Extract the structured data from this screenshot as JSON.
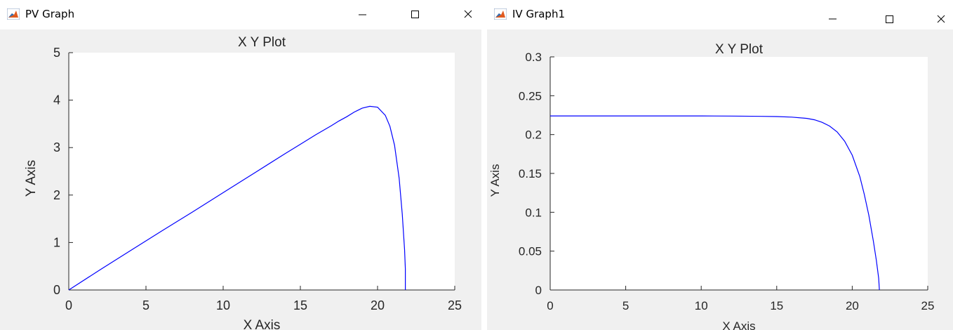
{
  "windows": [
    {
      "title": "PV Graph",
      "icon": "matlab-icon",
      "chart": {
        "title": "X Y Plot",
        "xlabel": "X Axis",
        "ylabel": "Y Axis"
      }
    },
    {
      "title": "IV Graph1",
      "icon": "matlab-icon",
      "chart": {
        "title": "X Y Plot",
        "xlabel": "X Axis",
        "ylabel": "Y Axis"
      }
    }
  ],
  "chart_data": [
    {
      "type": "line",
      "title": "X Y Plot",
      "xlabel": "X Axis",
      "ylabel": "Y Axis",
      "xlim": [
        0,
        25
      ],
      "ylim": [
        0,
        5
      ],
      "xticks": [
        "0",
        "5",
        "10",
        "15",
        "20",
        "25"
      ],
      "yticks": [
        "0",
        "1",
        "2",
        "3",
        "4",
        "5"
      ],
      "grid": false,
      "color": "#0000ff",
      "x": [
        0,
        2,
        4,
        6,
        8,
        10,
        12,
        14,
        15,
        16,
        17,
        17.5,
        18,
        18.5,
        19,
        19.5,
        20,
        20.5,
        20.8,
        21.1,
        21.4,
        21.6,
        21.75,
        21.8,
        21.8
      ],
      "y": [
        0,
        0.42,
        0.83,
        1.24,
        1.64,
        2.05,
        2.46,
        2.87,
        3.07,
        3.27,
        3.46,
        3.56,
        3.65,
        3.75,
        3.83,
        3.87,
        3.85,
        3.68,
        3.45,
        3.05,
        2.35,
        1.6,
        0.85,
        0.45,
        0
      ]
    },
    {
      "type": "line",
      "title": "X Y Plot",
      "xlabel": "X Axis",
      "ylabel": "Y Axis",
      "xlim": [
        0,
        25
      ],
      "ylim": [
        0,
        0.3
      ],
      "xticks": [
        "0",
        "5",
        "10",
        "15",
        "20",
        "25"
      ],
      "yticks": [
        "0",
        "0.05",
        "0.1",
        "0.15",
        "0.2",
        "0.25",
        "0.3"
      ],
      "grid": false,
      "color": "#0000ff",
      "x": [
        0,
        5,
        10,
        12,
        14,
        15,
        16,
        17,
        17.5,
        18,
        18.5,
        19,
        19.5,
        20,
        20.5,
        20.8,
        21.1,
        21.4,
        21.6,
        21.75,
        21.8
      ],
      "y": [
        0.224,
        0.224,
        0.224,
        0.2238,
        0.2235,
        0.2232,
        0.2225,
        0.2208,
        0.219,
        0.2158,
        0.211,
        0.2034,
        0.1915,
        0.1735,
        0.146,
        0.123,
        0.096,
        0.063,
        0.038,
        0.015,
        0
      ]
    }
  ]
}
